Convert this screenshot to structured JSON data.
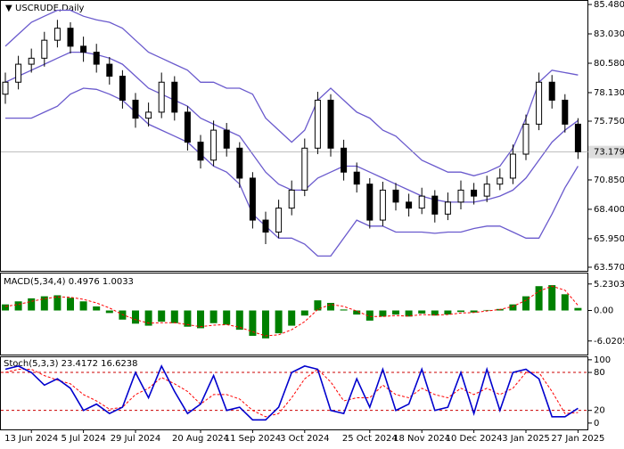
{
  "chart_data": [
    {
      "type": "candlestick",
      "title": "USCRUDE,Daily",
      "categories": [
        null,
        null,
        "13 Jun 2024",
        null,
        null,
        null,
        "5 Jul 2024",
        null,
        null,
        null,
        "29 Jul 2024",
        null,
        null,
        null,
        null,
        "20 Aug 2024",
        null,
        null,
        null,
        "11 Sep 2024",
        null,
        null,
        null,
        "3 Oct 2024",
        null,
        null,
        null,
        null,
        "25 Oct 2024",
        null,
        null,
        null,
        "18 Nov 2024",
        null,
        null,
        null,
        "10 Dec 2024",
        null,
        null,
        null,
        "3 Jan 2025",
        null,
        null,
        null,
        "27 Jan 2025"
      ],
      "open": [
        78.0,
        79.0,
        80.5,
        81.0,
        82.5,
        83.5,
        82.0,
        81.5,
        80.5,
        79.5,
        77.5,
        76.0,
        76.5,
        79.0,
        76.5,
        74.0,
        72.5,
        75.0,
        73.5,
        71.0,
        67.5,
        66.5,
        68.5,
        70.0,
        73.5,
        77.5,
        73.5,
        71.5,
        70.5,
        67.5,
        70.0,
        69.0,
        68.5,
        69.5,
        68.0,
        69.0,
        70.0,
        69.5,
        70.5,
        71.0,
        73.0,
        75.5,
        79.0,
        77.5,
        75.5
      ],
      "high": [
        79.8,
        81.2,
        81.8,
        83.2,
        84.2,
        84.0,
        82.8,
        82.2,
        81.1,
        80.0,
        78.1,
        77.3,
        79.8,
        79.5,
        77.0,
        74.6,
        75.8,
        75.6,
        74.0,
        71.5,
        68.2,
        69.2,
        70.8,
        74.3,
        78.2,
        78.0,
        74.2,
        72.3,
        71.0,
        70.7,
        70.6,
        69.7,
        70.2,
        70.0,
        69.8,
        70.8,
        70.6,
        71.2,
        71.8,
        73.8,
        76.3,
        79.8,
        79.6,
        78.0,
        76.0
      ],
      "low": [
        77.2,
        78.4,
        79.8,
        80.3,
        81.9,
        81.4,
        80.7,
        79.8,
        78.8,
        76.8,
        75.2,
        75.3,
        76.0,
        75.8,
        73.3,
        71.8,
        72.0,
        72.8,
        70.2,
        66.8,
        65.5,
        66.0,
        67.9,
        69.5,
        73.0,
        72.8,
        70.8,
        69.8,
        66.8,
        67.0,
        68.3,
        67.8,
        68.0,
        67.3,
        67.5,
        68.4,
        68.8,
        69.0,
        70.0,
        70.5,
        72.5,
        75.0,
        76.8,
        74.8,
        72.6
      ],
      "close": [
        79.0,
        80.5,
        81.0,
        82.5,
        83.5,
        82.0,
        81.5,
        80.5,
        79.5,
        77.5,
        76.0,
        76.5,
        79.0,
        76.5,
        74.0,
        72.5,
        75.0,
        73.5,
        71.0,
        67.5,
        66.5,
        68.5,
        70.0,
        73.5,
        77.5,
        73.5,
        71.5,
        70.5,
        67.5,
        70.0,
        69.0,
        68.5,
        69.5,
        68.0,
        69.0,
        70.0,
        69.5,
        70.5,
        71.0,
        73.0,
        75.5,
        79.0,
        77.5,
        75.5,
        73.2
      ],
      "series": [
        {
          "name": "upper",
          "color": "#6a5acd",
          "values": [
            82,
            83,
            84,
            84.5,
            85,
            85,
            84.5,
            84.2,
            84,
            83.5,
            82.5,
            81.5,
            81,
            80.5,
            80,
            79,
            79,
            78.5,
            78.5,
            78,
            76,
            75,
            74,
            75,
            77.5,
            78.5,
            77.5,
            76.5,
            76,
            75,
            74.5,
            73.5,
            72.5,
            72,
            71.5,
            71.5,
            71.2,
            71.5,
            72,
            73.5,
            76,
            79,
            80,
            79.8,
            79.6
          ]
        },
        {
          "name": "middle",
          "color": "#6a5acd",
          "values": [
            79,
            79.5,
            80,
            80.5,
            81,
            81.5,
            81.5,
            81.3,
            81,
            80.5,
            79.5,
            78.5,
            78,
            77.5,
            77,
            76,
            75.5,
            75,
            74.5,
            73,
            71.5,
            70.5,
            70,
            70,
            71,
            71.5,
            72,
            72,
            71.5,
            71,
            70.5,
            70,
            69.5,
            69.2,
            69,
            69,
            69,
            69.2,
            69.5,
            70,
            71,
            72.5,
            74,
            75,
            75.8
          ]
        },
        {
          "name": "lower",
          "color": "#6a5acd",
          "values": [
            76,
            76,
            76,
            76.5,
            77,
            78,
            78.5,
            78.4,
            78,
            77.5,
            76.5,
            75.5,
            75,
            74.5,
            74,
            73,
            72,
            71.5,
            70.5,
            68,
            67,
            66,
            66,
            65.5,
            64.5,
            64.5,
            66,
            67.5,
            67,
            67,
            66.5,
            66.5,
            66.5,
            66.4,
            66.5,
            66.5,
            66.8,
            67,
            67,
            66.5,
            66,
            66,
            68,
            70.2,
            72
          ]
        }
      ],
      "last_price": {
        "value": 73.179,
        "label": "73.179"
      },
      "ylim": [
        63.27,
        85.78
      ],
      "yticks": [
        {
          "value": 85.48,
          "label": "85.480"
        },
        {
          "value": 83.03,
          "label": "83.030"
        },
        {
          "value": 80.58,
          "label": "80.580"
        },
        {
          "value": 78.13,
          "label": "78.130"
        },
        {
          "value": 75.75,
          "label": "75.750"
        },
        {
          "value": 70.85,
          "label": "70.850"
        },
        {
          "value": 68.4,
          "label": "68.400"
        },
        {
          "value": 65.95,
          "label": "65.950"
        },
        {
          "value": 63.57,
          "label": "63.570"
        }
      ]
    },
    {
      "type": "macd",
      "title": "MACD(5,34,4) 0.4976 1.0033",
      "series": [
        {
          "name": "histogram",
          "color": "#008000",
          "values": [
            1.2,
            1.8,
            2.4,
            2.8,
            3.0,
            2.5,
            1.8,
            0.8,
            -0.5,
            -1.8,
            -2.6,
            -3.0,
            -2.2,
            -2.5,
            -3.2,
            -3.5,
            -2.5,
            -2.8,
            -3.8,
            -5.0,
            -5.5,
            -4.5,
            -3.0,
            -1.0,
            2.0,
            1.5,
            0.2,
            -0.8,
            -2.0,
            -1.2,
            -0.8,
            -1.2,
            -0.6,
            -1.0,
            -0.8,
            -0.3,
            -0.4,
            0.1,
            0.3,
            1.2,
            2.8,
            4.8,
            5.0,
            3.2,
            0.5
          ]
        },
        {
          "name": "signal",
          "color": "#ff0000",
          "values": [
            0.8,
            1.2,
            1.8,
            2.3,
            2.7,
            2.6,
            2.2,
            1.5,
            0.5,
            -0.8,
            -1.8,
            -2.5,
            -2.4,
            -2.4,
            -2.8,
            -3.2,
            -2.9,
            -2.8,
            -3.3,
            -4.2,
            -5.0,
            -4.8,
            -3.8,
            -2.2,
            0.2,
            1.2,
            0.8,
            -0.1,
            -1.2,
            -1.2,
            -1.0,
            -1.1,
            -0.8,
            -0.9,
            -0.8,
            -0.5,
            -0.4,
            -0.1,
            0.2,
            0.8,
            2.0,
            3.8,
            4.8,
            4.0,
            1.0
          ]
        }
      ],
      "ylim": [
        -8.7,
        7.3
      ],
      "yticks": [
        5.2303,
        {
          "value": 0,
          "label": "0.00"
        },
        -6.0205
      ]
    },
    {
      "type": "stochastic",
      "title": "Stoch(5,3,3) 23.4172 16.6238",
      "series": [
        {
          "name": "main",
          "color": "#0000cd",
          "values": [
            85,
            90,
            80,
            60,
            70,
            55,
            20,
            30,
            15,
            25,
            80,
            40,
            90,
            50,
            15,
            30,
            75,
            20,
            25,
            5,
            5,
            25,
            80,
            90,
            85,
            20,
            15,
            70,
            25,
            85,
            20,
            30,
            85,
            20,
            25,
            80,
            15,
            85,
            20,
            80,
            85,
            70,
            10,
            10,
            23.4
          ]
        },
        {
          "name": "signal",
          "color": "#ff0000",
          "values": [
            80,
            85,
            85,
            75,
            68,
            62,
            45,
            35,
            22,
            25,
            45,
            55,
            72,
            62,
            50,
            30,
            45,
            45,
            38,
            20,
            10,
            15,
            40,
            70,
            85,
            65,
            35,
            40,
            40,
            60,
            45,
            40,
            55,
            45,
            40,
            55,
            45,
            55,
            45,
            55,
            80,
            80,
            50,
            15,
            16.6
          ]
        }
      ],
      "levels": [
        80,
        20
      ],
      "ylim": [
        -10,
        104
      ],
      "yticks": [
        100,
        80,
        20,
        0
      ]
    }
  ]
}
